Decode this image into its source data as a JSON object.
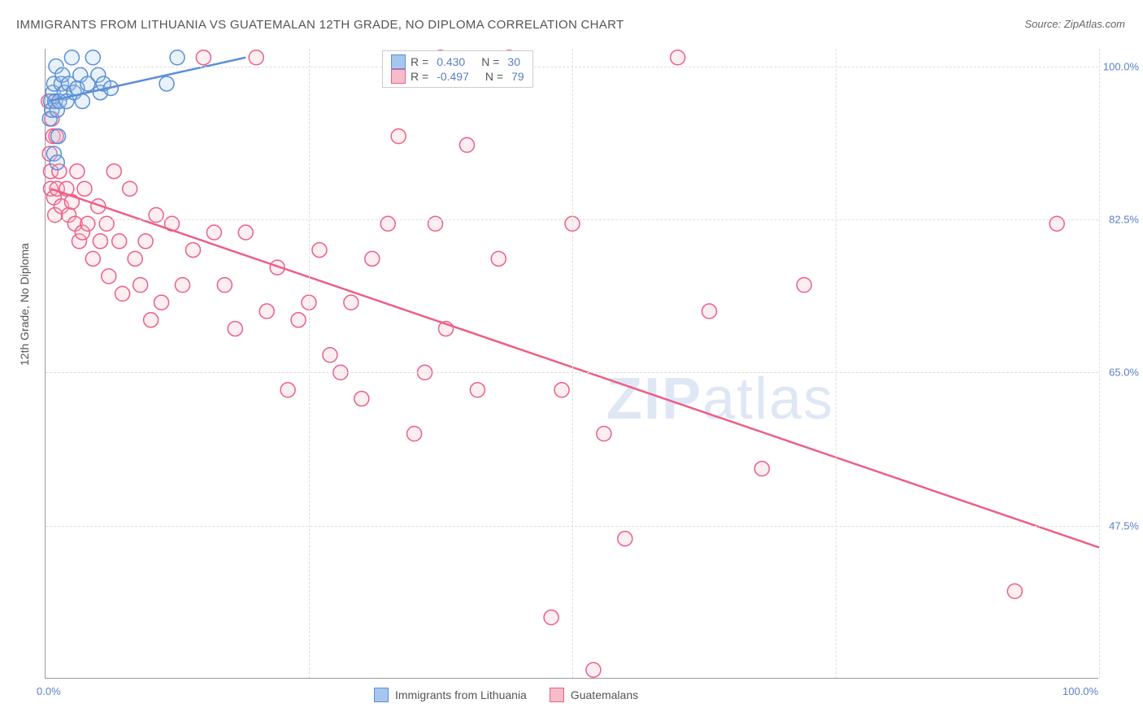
{
  "title": "IMMIGRANTS FROM LITHUANIA VS GUATEMALAN 12TH GRADE, NO DIPLOMA CORRELATION CHART",
  "source": "Source: ZipAtlas.com",
  "ylabel": "12th Grade, No Diploma",
  "watermark_a": "ZIP",
  "watermark_b": "atlas",
  "chart": {
    "type": "scatter",
    "xlim": [
      0,
      100
    ],
    "ylim": [
      30,
      102
    ],
    "yticks": [
      47.5,
      65.0,
      82.5,
      100.0
    ],
    "ytick_labels": [
      "47.5%",
      "65.0%",
      "82.5%",
      "100.0%"
    ],
    "xtick_left": "0.0%",
    "xtick_right": "100.0%",
    "vgrid_x": [
      0,
      25,
      50,
      75,
      100
    ],
    "background_color": "#ffffff",
    "grid_color": "#dddddd",
    "axis_color": "#999999",
    "tick_label_color": "#5b7fc7",
    "marker_radius": 9,
    "series": {
      "blue": {
        "name": "Immigrants from Lithuania",
        "color_stroke": "#5b8fd6",
        "color_fill": "#a7c6ed",
        "R": "0.430",
        "N": "30",
        "trend": {
          "x1": 0.3,
          "y1": 96,
          "x2": 19,
          "y2": 101
        },
        "points": [
          [
            0.4,
            94
          ],
          [
            0.5,
            96
          ],
          [
            0.6,
            95
          ],
          [
            0.7,
            97
          ],
          [
            0.8,
            98
          ],
          [
            0.9,
            96
          ],
          [
            1.0,
            100
          ],
          [
            1.1,
            95
          ],
          [
            1.2,
            92
          ],
          [
            1.3,
            96
          ],
          [
            1.5,
            98
          ],
          [
            1.6,
            99
          ],
          [
            1.8,
            97
          ],
          [
            2.0,
            96
          ],
          [
            2.2,
            98
          ],
          [
            2.5,
            101
          ],
          [
            2.7,
            97
          ],
          [
            3.0,
            97.5
          ],
          [
            3.3,
            99
          ],
          [
            3.5,
            96
          ],
          [
            4.0,
            98
          ],
          [
            4.5,
            101
          ],
          [
            5.0,
            99
          ],
          [
            5.2,
            97
          ],
          [
            5.5,
            98
          ],
          [
            6.2,
            97.5
          ],
          [
            11.5,
            98
          ],
          [
            12.5,
            101
          ],
          [
            0.8,
            90
          ],
          [
            1.1,
            89
          ]
        ]
      },
      "pink": {
        "name": "Guatemalans",
        "color_stroke": "#ec5f86",
        "color_fill": "#f6bcc9",
        "R": "-0.497",
        "N": "79",
        "trend": {
          "x1": 0.5,
          "y1": 86,
          "x2": 100,
          "y2": 45
        },
        "points": [
          [
            0.3,
            96
          ],
          [
            0.4,
            90
          ],
          [
            0.5,
            88
          ],
          [
            0.5,
            86
          ],
          [
            0.6,
            94
          ],
          [
            0.7,
            92
          ],
          [
            0.8,
            85
          ],
          [
            0.9,
            83
          ],
          [
            1.0,
            92
          ],
          [
            1.1,
            86
          ],
          [
            1.3,
            88
          ],
          [
            1.5,
            84
          ],
          [
            2.0,
            86
          ],
          [
            2.2,
            83
          ],
          [
            2.5,
            84.5
          ],
          [
            2.8,
            82
          ],
          [
            3.0,
            88
          ],
          [
            3.2,
            80
          ],
          [
            3.5,
            81
          ],
          [
            3.7,
            86
          ],
          [
            4.0,
            82
          ],
          [
            4.5,
            78
          ],
          [
            5.0,
            84
          ],
          [
            5.2,
            80
          ],
          [
            5.8,
            82
          ],
          [
            6.0,
            76
          ],
          [
            6.5,
            88
          ],
          [
            7.0,
            80
          ],
          [
            7.3,
            74
          ],
          [
            8.0,
            86
          ],
          [
            8.5,
            78
          ],
          [
            9.0,
            75
          ],
          [
            9.5,
            80
          ],
          [
            10.0,
            71
          ],
          [
            10.5,
            83
          ],
          [
            11.0,
            73
          ],
          [
            12.0,
            82
          ],
          [
            13.0,
            75
          ],
          [
            14.0,
            79
          ],
          [
            15.0,
            101
          ],
          [
            16.0,
            81
          ],
          [
            17.0,
            75
          ],
          [
            18.0,
            70
          ],
          [
            19.0,
            81
          ],
          [
            20.0,
            101
          ],
          [
            21.0,
            72
          ],
          [
            22.0,
            77
          ],
          [
            23.0,
            63
          ],
          [
            24.0,
            71
          ],
          [
            25.0,
            73
          ],
          [
            26.0,
            79
          ],
          [
            27.0,
            67
          ],
          [
            28.0,
            65
          ],
          [
            29.0,
            73
          ],
          [
            30.0,
            62
          ],
          [
            31.0,
            78
          ],
          [
            32.5,
            82
          ],
          [
            33.5,
            92
          ],
          [
            35.0,
            58
          ],
          [
            36.0,
            65
          ],
          [
            37.0,
            82
          ],
          [
            38.0,
            70
          ],
          [
            40.0,
            91
          ],
          [
            41.0,
            63
          ],
          [
            43.0,
            78
          ],
          [
            44.0,
            101
          ],
          [
            48.0,
            37
          ],
          [
            49.0,
            63
          ],
          [
            50.0,
            82
          ],
          [
            52.0,
            31
          ],
          [
            53.0,
            58
          ],
          [
            55.0,
            46
          ],
          [
            60.0,
            101
          ],
          [
            63.0,
            72
          ],
          [
            68.0,
            54
          ],
          [
            72.0,
            75
          ],
          [
            92.0,
            40
          ],
          [
            96.0,
            82
          ],
          [
            37.5,
            101
          ]
        ]
      }
    }
  },
  "legend_top": {
    "R_label": "R =",
    "N_label": "N ="
  },
  "legend_bottom_blue": "Immigrants from Lithuania",
  "legend_bottom_pink": "Guatemalans"
}
